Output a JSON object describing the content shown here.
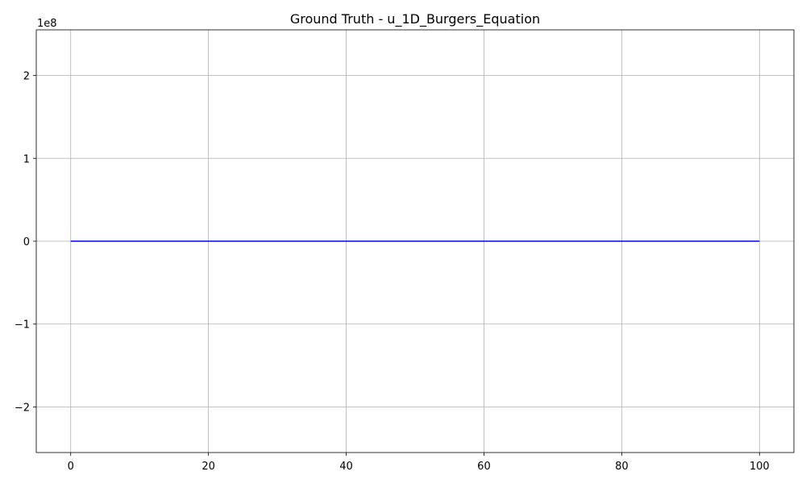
{
  "chart_data": {
    "type": "line",
    "title": "Ground Truth - u_1D_Burgers_Equation",
    "xlabel": "",
    "ylabel": "",
    "xlim": [
      -5,
      105
    ],
    "ylim": [
      -2.55,
      2.55
    ],
    "y_offset_label": "1e8",
    "x_ticks": [
      0,
      20,
      40,
      60,
      80,
      100
    ],
    "x_tick_labels": [
      "0",
      "20",
      "40",
      "60",
      "80",
      "100"
    ],
    "y_ticks": [
      -2,
      -1,
      0,
      1,
      2
    ],
    "y_tick_labels": [
      "−2",
      "−1",
      "0",
      "1",
      "2"
    ],
    "grid": true,
    "series": [
      {
        "color": "#0000ff",
        "x": [
          0,
          10,
          20,
          30,
          40,
          50,
          60,
          70,
          80,
          90,
          100
        ],
        "y": [
          0,
          0,
          0,
          0,
          0,
          0,
          0,
          0,
          0,
          0,
          0
        ]
      }
    ]
  }
}
